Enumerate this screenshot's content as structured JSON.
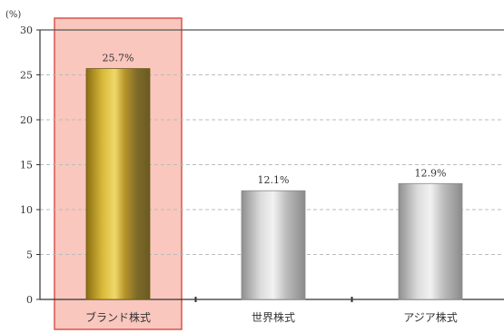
{
  "chart_data": {
    "type": "bar",
    "title": "",
    "y_unit": "(%)",
    "categories": [
      "ブランド株式",
      "世界株式",
      "アジア株式"
    ],
    "values": [
      25.7,
      12.1,
      12.9
    ],
    "value_labels": [
      "25.7%",
      "12.1%",
      "12.9%"
    ],
    "ylim": [
      0,
      30
    ],
    "yticks": [
      0,
      5,
      10,
      15,
      20,
      25,
      30
    ],
    "grid": true,
    "highlighted_category": "ブランド株式",
    "colors": {
      "highlight_bar": "#c9a227",
      "other_bars": "#b9b9b9",
      "highlight_box_fill": "#f9c7bd",
      "highlight_box_stroke": "#d9534f"
    }
  }
}
